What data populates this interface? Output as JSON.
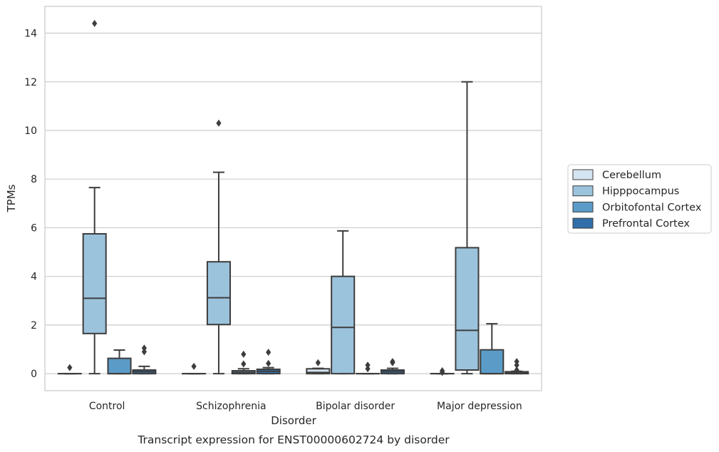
{
  "chart_data": {
    "type": "box",
    "xlabel": "Disorder",
    "ylabel": "TPMs",
    "caption": "Transcript expression for ENST00000602724 by disorder",
    "ylim": [
      -0.7,
      15.1
    ],
    "yticks": [
      0,
      2,
      4,
      6,
      8,
      10,
      12,
      14
    ],
    "grid": "horizontal",
    "legend_position": "right",
    "categories": [
      "Control",
      "Schizophrenia",
      "Bipolar disorder",
      "Major depression"
    ],
    "series": [
      {
        "name": "Cerebellum",
        "color": "#d5e4f1",
        "boxes": [
          {
            "q1": 0,
            "median": 0,
            "q3": 0,
            "whisker_low": 0,
            "whisker_high": 0,
            "outliers": [
              0.25
            ]
          },
          {
            "q1": 0,
            "median": 0,
            "q3": 0,
            "whisker_low": 0,
            "whisker_high": 0,
            "outliers": [
              0.3
            ]
          },
          {
            "q1": 0,
            "median": 0.05,
            "q3": 0.2,
            "whisker_low": 0,
            "whisker_high": 0.22,
            "outliers": [
              0.45
            ]
          },
          {
            "q1": 0,
            "median": 0,
            "q3": 0,
            "whisker_low": 0,
            "whisker_high": 0,
            "outliers": [
              0.12,
              0.05
            ]
          }
        ]
      },
      {
        "name": "Hipppocampus",
        "color": "#9cc3dc",
        "boxes": [
          {
            "q1": 1.65,
            "median": 3.1,
            "q3": 5.75,
            "whisker_low": 0,
            "whisker_high": 7.65,
            "outliers": [
              14.4
            ]
          },
          {
            "q1": 2.02,
            "median": 3.12,
            "q3": 4.6,
            "whisker_low": 0,
            "whisker_high": 8.28,
            "outliers": [
              10.3
            ]
          },
          {
            "q1": 0,
            "median": 1.9,
            "q3": 4.0,
            "whisker_low": 0,
            "whisker_high": 5.87,
            "outliers": []
          },
          {
            "q1": 0.15,
            "median": 1.78,
            "q3": 5.18,
            "whisker_low": 0,
            "whisker_high": 12.0,
            "outliers": []
          }
        ]
      },
      {
        "name": "Orbitofontal Cortex",
        "color": "#5b9bc7",
        "boxes": [
          {
            "q1": 0,
            "median": 0,
            "q3": 0.63,
            "whisker_low": 0,
            "whisker_high": 0.97,
            "outliers": []
          },
          {
            "q1": 0,
            "median": 0.05,
            "q3": 0.12,
            "whisker_low": 0,
            "whisker_high": 0.2,
            "outliers": [
              0.4,
              0.8
            ]
          },
          {
            "q1": 0,
            "median": 0,
            "q3": 0,
            "whisker_low": 0,
            "whisker_high": 0,
            "outliers": [
              0.35,
              0.2
            ]
          },
          {
            "q1": 0,
            "median": 0,
            "q3": 0.98,
            "whisker_low": 0,
            "whisker_high": 2.05,
            "outliers": []
          }
        ]
      },
      {
        "name": "Prefrontal Cortex",
        "color": "#2f6ea8",
        "boxes": [
          {
            "q1": 0,
            "median": 0.08,
            "q3": 0.15,
            "whisker_low": 0,
            "whisker_high": 0.3,
            "outliers": [
              0.9,
              1.05
            ]
          },
          {
            "q1": 0,
            "median": 0.1,
            "q3": 0.18,
            "whisker_low": 0,
            "whisker_high": 0.25,
            "outliers": [
              0.42,
              0.88
            ]
          },
          {
            "q1": 0,
            "median": 0.08,
            "q3": 0.15,
            "whisker_low": 0,
            "whisker_high": 0.22,
            "outliers": [
              0.5,
              0.45
            ]
          },
          {
            "q1": 0,
            "median": 0.02,
            "q3": 0.08,
            "whisker_low": 0,
            "whisker_high": 0.1,
            "outliers": [
              0.15,
              0.35,
              0.5
            ]
          }
        ]
      }
    ]
  }
}
